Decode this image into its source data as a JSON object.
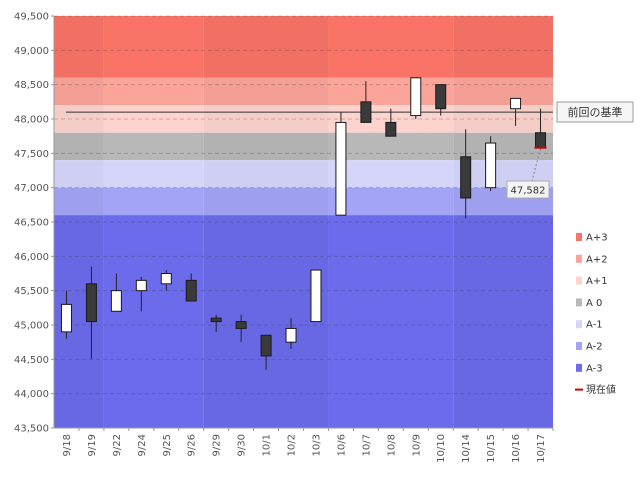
{
  "chart_data": {
    "type": "candlestick",
    "title": "",
    "xlabel": "",
    "ylabel": "",
    "ylim": [
      43500,
      49500
    ],
    "y_ticks": [
      43500,
      44000,
      44500,
      45000,
      45500,
      46000,
      46500,
      47000,
      47500,
      48000,
      48500,
      49000,
      49500
    ],
    "y_tick_labels": [
      "43,500",
      "44,000",
      "44,500",
      "45,000",
      "45,500",
      "46,000",
      "46,500",
      "47,000",
      "47,500",
      "48,000",
      "48,500",
      "49,000",
      "49,500"
    ],
    "categories": [
      "9/18",
      "9/19",
      "9/22",
      "9/24",
      "9/25",
      "9/26",
      "9/29",
      "9/30",
      "10/1",
      "10/2",
      "10/3",
      "10/6",
      "10/7",
      "10/8",
      "10/9",
      "10/10",
      "10/14",
      "10/15",
      "10/16",
      "10/17"
    ],
    "week_groups": [
      [
        0,
        1
      ],
      [
        2,
        5
      ],
      [
        6,
        10
      ],
      [
        11,
        15
      ],
      [
        16,
        19
      ]
    ],
    "candles": [
      {
        "date": "9/18",
        "open": 44900,
        "high": 45500,
        "low": 44800,
        "close": 45300
      },
      {
        "date": "9/19",
        "open": 45600,
        "high": 45850,
        "low": 44500,
        "close": 45050
      },
      {
        "date": "9/22",
        "open": 45200,
        "high": 45750,
        "low": 45200,
        "close": 45500
      },
      {
        "date": "9/24",
        "open": 45500,
        "high": 45700,
        "low": 45200,
        "close": 45650
      },
      {
        "date": "9/25",
        "open": 45600,
        "high": 45800,
        "low": 45500,
        "close": 45750
      },
      {
        "date": "9/26",
        "open": 45650,
        "high": 45750,
        "low": 45350,
        "close": 45350
      },
      {
        "date": "9/29",
        "open": 45100,
        "high": 45150,
        "low": 44900,
        "close": 45050
      },
      {
        "date": "9/30",
        "open": 45050,
        "high": 45150,
        "low": 44750,
        "close": 44950
      },
      {
        "date": "10/1",
        "open": 44850,
        "high": 44850,
        "low": 44350,
        "close": 44550
      },
      {
        "date": "10/2",
        "open": 44750,
        "high": 45100,
        "low": 44650,
        "close": 44950
      },
      {
        "date": "10/3",
        "open": 45050,
        "high": 45800,
        "low": 45050,
        "close": 45800
      },
      {
        "date": "10/6",
        "open": 46600,
        "high": 48100,
        "low": 46600,
        "close": 47950
      },
      {
        "date": "10/7",
        "open": 48250,
        "high": 48550,
        "low": 47950,
        "close": 47950
      },
      {
        "date": "10/8",
        "open": 47950,
        "high": 48150,
        "low": 47750,
        "close": 47750
      },
      {
        "date": "10/9",
        "open": 48050,
        "high": 48600,
        "low": 48000,
        "close": 48600
      },
      {
        "date": "10/10",
        "open": 48500,
        "high": 48500,
        "low": 48050,
        "close": 48150
      },
      {
        "date": "10/14",
        "open": 47450,
        "high": 47850,
        "low": 46550,
        "close": 46850
      },
      {
        "date": "10/15",
        "open": 47000,
        "high": 47750,
        "low": 46950,
        "close": 47650
      },
      {
        "date": "10/16",
        "open": 48150,
        "high": 48300,
        "low": 47900,
        "close": 48300
      },
      {
        "date": "10/17",
        "open": 47800,
        "high": 48150,
        "low": 47550,
        "close": 47582
      }
    ],
    "bands": [
      {
        "name": "A+3",
        "from": 48600,
        "to": 49500,
        "color": "#f97366"
      },
      {
        "name": "A+2",
        "from": 48200,
        "to": 48600,
        "color": "#fba49a"
      },
      {
        "name": "A+1",
        "from": 47800,
        "to": 48200,
        "color": "#fdd3cd"
      },
      {
        "name": "A 0",
        "from": 47400,
        "to": 47800,
        "color": "#b8b8b8"
      },
      {
        "name": "A-1",
        "from": 47000,
        "to": 47400,
        "color": "#d5d5fa"
      },
      {
        "name": "A-2",
        "from": 46600,
        "to": 47000,
        "color": "#a4a4f6"
      },
      {
        "name": "A-3",
        "from": 43500,
        "to": 46600,
        "color": "#6b6bec"
      }
    ],
    "reference_line": {
      "label": "前回の基準",
      "value": 48100
    },
    "current_value": {
      "label": "現在値",
      "value": 47582,
      "value_label": "47,582",
      "color": "#cc0000"
    },
    "legend_position": "right"
  }
}
